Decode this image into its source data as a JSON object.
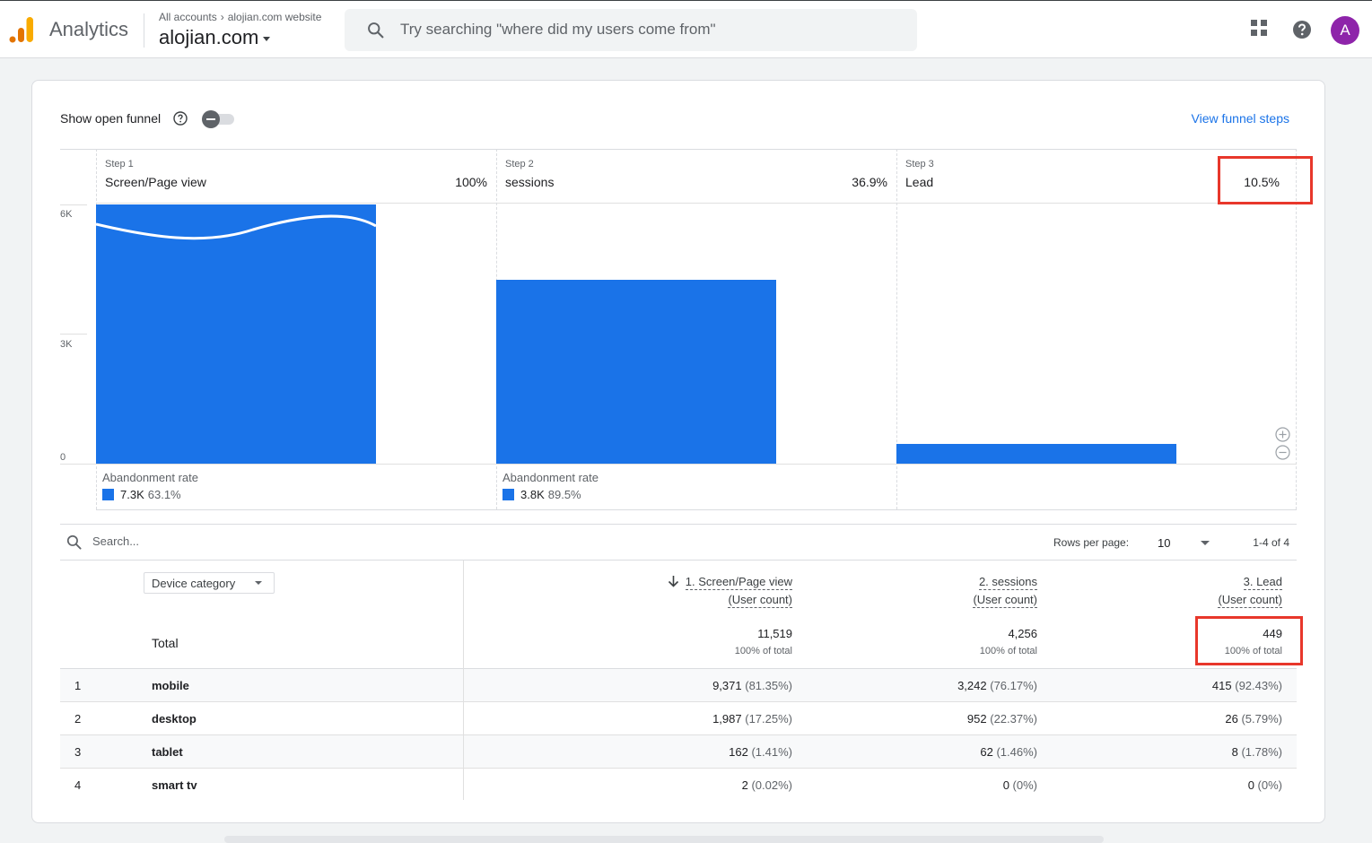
{
  "header": {
    "app_name": "Analytics",
    "breadcrumb": {
      "account": "All accounts",
      "property_full": "alojian.com website"
    },
    "property": "alojian.com",
    "search_placeholder": "Try searching \"where did my users come from\"",
    "avatar_letter": "A"
  },
  "controls": {
    "open_funnel_label": "Show open funnel",
    "open_funnel_on": false,
    "view_funnel_steps": "View funnel steps"
  },
  "funnel": {
    "y_ticks": [
      "6K",
      "3K",
      "0"
    ],
    "steps": [
      {
        "step_label": "Step 1",
        "name": "Screen/Page view",
        "percent": "100%",
        "users": 11519,
        "abandonment_label": "Abandonment rate",
        "abandonment_count": "7.3K",
        "abandonment_rate": "63.1%"
      },
      {
        "step_label": "Step 2",
        "name": "sessions",
        "percent": "36.9%",
        "users": 4256,
        "abandonment_label": "Abandonment rate",
        "abandonment_count": "3.8K",
        "abandonment_rate": "89.5%"
      },
      {
        "step_label": "Step 3",
        "name": "Lead",
        "percent": "10.5%",
        "users": 449
      }
    ],
    "bar_color": "#1a73e8"
  },
  "table": {
    "search_placeholder": "Search...",
    "rows_per_page_label": "Rows per page:",
    "rows_per_page": "10",
    "pagination": "1-4 of 4",
    "dimension": "Device category",
    "total_label": "Total",
    "columns": [
      {
        "title": "1. Screen/Page view",
        "subtitle": "(User count)",
        "total": "11,519",
        "total_share": "100% of total"
      },
      {
        "title": "2. sessions",
        "subtitle": "(User count)",
        "total": "4,256",
        "total_share": "100% of total"
      },
      {
        "title": "3. Lead",
        "subtitle": "(User count)",
        "total": "449",
        "total_share": "100% of total"
      }
    ],
    "rows": [
      {
        "index": "1",
        "device": "mobile",
        "values": [
          {
            "v": "9,371",
            "p": "(81.35%)"
          },
          {
            "v": "3,242",
            "p": "(76.17%)"
          },
          {
            "v": "415",
            "p": "(92.43%)"
          }
        ]
      },
      {
        "index": "2",
        "device": "desktop",
        "values": [
          {
            "v": "1,987",
            "p": "(17.25%)"
          },
          {
            "v": "952",
            "p": "(22.37%)"
          },
          {
            "v": "26",
            "p": "(5.79%)"
          }
        ]
      },
      {
        "index": "3",
        "device": "tablet",
        "values": [
          {
            "v": "162",
            "p": "(1.41%)"
          },
          {
            "v": "62",
            "p": "(1.46%)"
          },
          {
            "v": "8",
            "p": "(1.78%)"
          }
        ]
      },
      {
        "index": "4",
        "device": "smart tv",
        "values": [
          {
            "v": "2",
            "p": "(0.02%)"
          },
          {
            "v": "0",
            "p": "(0%)"
          },
          {
            "v": "0",
            "p": "(0%)"
          }
        ]
      }
    ]
  },
  "highlight_color": "#e8372b"
}
